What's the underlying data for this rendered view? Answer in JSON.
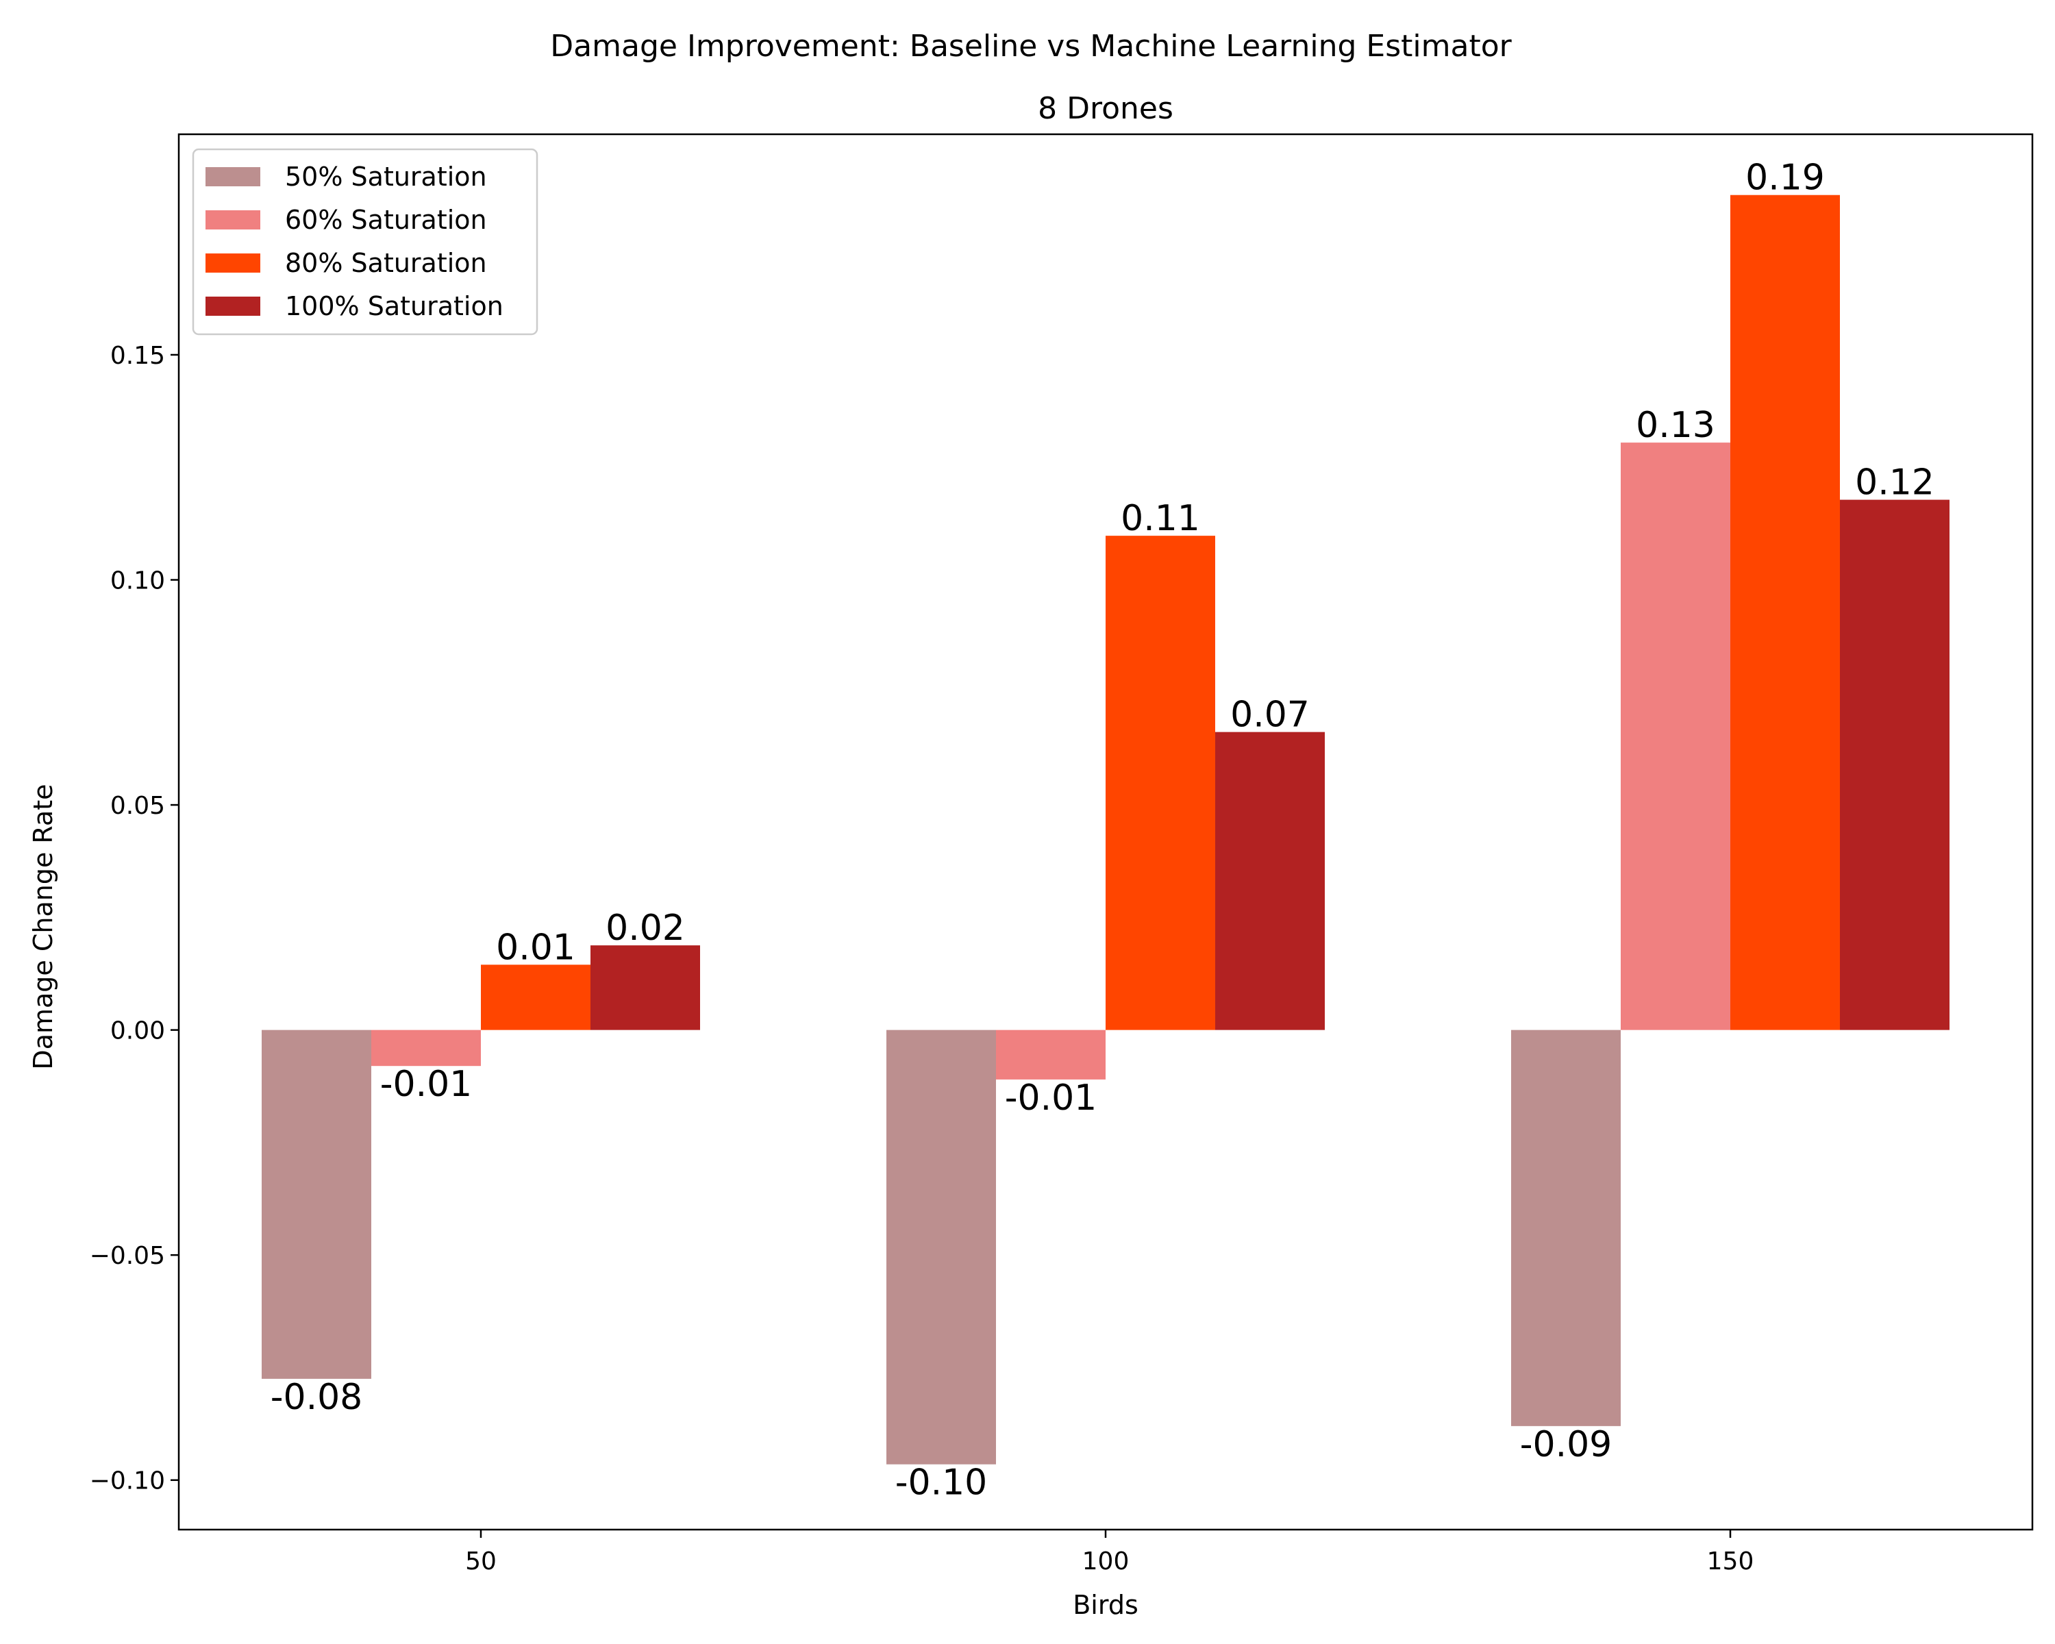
{
  "chart_data": {
    "type": "bar",
    "suptitle": "Damage Improvement: Baseline vs Machine Learning Estimator",
    "title": "8 Drones",
    "xlabel": "Birds",
    "ylabel": "Damage Change Rate",
    "categories": [
      "50",
      "100",
      "150"
    ],
    "ylim": [
      -0.111,
      0.199
    ],
    "yticks": [
      -0.1,
      -0.05,
      0.0,
      0.05,
      0.1,
      0.15
    ],
    "ytick_labels": [
      "−0.10",
      "−0.05",
      "0.00",
      "0.05",
      "0.10",
      "0.15"
    ],
    "legend_position": "top-left",
    "grid": false,
    "series": [
      {
        "name": "50% Saturation",
        "color": "#bc8f8f",
        "values": [
          -0.0775,
          -0.0965,
          -0.088
        ],
        "labels": [
          "-0.08",
          "-0.10",
          "-0.09"
        ]
      },
      {
        "name": "60% Saturation",
        "color": "#f08080",
        "values": [
          -0.008,
          -0.011,
          0.1305
        ],
        "labels": [
          "-0.01",
          "-0.01",
          "0.13"
        ]
      },
      {
        "name": "80% Saturation",
        "color": "#ff4500",
        "values": [
          0.0145,
          0.1098,
          0.1855
        ],
        "labels": [
          "0.01",
          "0.11",
          "0.19"
        ]
      },
      {
        "name": "100% Saturation",
        "color": "#b22222",
        "values": [
          0.0188,
          0.0662,
          0.1178
        ],
        "labels": [
          "0.02",
          "0.07",
          "0.12"
        ]
      }
    ]
  }
}
